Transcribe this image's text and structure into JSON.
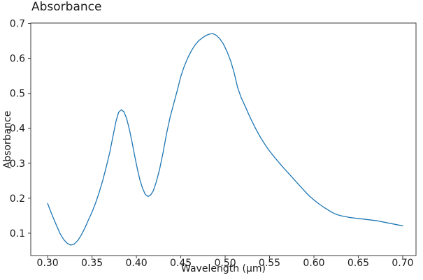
{
  "chart_data": {
    "type": "line",
    "title": "Absorbance",
    "xlabel": "Wavelength (μm)",
    "ylabel": "Absorbance",
    "xlim": [
      0.281,
      0.715
    ],
    "ylim": [
      0.036,
      0.701
    ],
    "grid": false,
    "legend": false,
    "line_color": "#1f77b4",
    "axis_color": "#3b3b3b",
    "text_color": "#1c1c1c",
    "background_color": "#ffffff",
    "x_ticks": {
      "values": [
        0.3,
        0.35,
        0.4,
        0.45,
        0.5,
        0.55,
        0.6,
        0.65,
        0.7
      ],
      "labels": [
        "0.30",
        "0.35",
        "0.40",
        "0.45",
        "0.50",
        "0.55",
        "0.60",
        "0.65",
        "0.70"
      ]
    },
    "y_ticks": {
      "values": [
        0.1,
        0.2,
        0.3,
        0.4,
        0.5,
        0.6,
        0.7
      ],
      "labels": [
        "0.1",
        "0.2",
        "0.3",
        "0.4",
        "0.5",
        "0.6",
        "0.7"
      ]
    },
    "series": [
      {
        "name": "absorbance",
        "x": [
          0.3,
          0.303,
          0.306,
          0.31,
          0.314,
          0.318,
          0.322,
          0.326,
          0.33,
          0.334,
          0.338,
          0.342,
          0.346,
          0.35,
          0.354,
          0.358,
          0.362,
          0.366,
          0.37,
          0.374,
          0.377,
          0.38,
          0.383,
          0.386,
          0.389,
          0.392,
          0.395,
          0.398,
          0.401,
          0.404,
          0.407,
          0.41,
          0.413,
          0.416,
          0.419,
          0.422,
          0.426,
          0.43,
          0.434,
          0.438,
          0.442,
          0.446,
          0.45,
          0.454,
          0.458,
          0.462,
          0.466,
          0.47,
          0.474,
          0.478,
          0.482,
          0.486,
          0.49,
          0.494,
          0.498,
          0.502,
          0.506,
          0.51,
          0.514,
          0.518,
          0.522,
          0.526,
          0.53,
          0.535,
          0.54,
          0.545,
          0.55,
          0.555,
          0.56,
          0.565,
          0.57,
          0.575,
          0.58,
          0.585,
          0.59,
          0.595,
          0.6,
          0.605,
          0.61,
          0.615,
          0.62,
          0.625,
          0.63,
          0.64,
          0.65,
          0.66,
          0.67,
          0.68,
          0.69,
          0.7
        ],
        "y": [
          0.185,
          0.165,
          0.146,
          0.122,
          0.099,
          0.082,
          0.071,
          0.066,
          0.069,
          0.079,
          0.095,
          0.115,
          0.138,
          0.16,
          0.186,
          0.216,
          0.25,
          0.289,
          0.331,
          0.382,
          0.42,
          0.446,
          0.453,
          0.447,
          0.428,
          0.398,
          0.362,
          0.322,
          0.285,
          0.252,
          0.228,
          0.211,
          0.205,
          0.209,
          0.221,
          0.243,
          0.281,
          0.33,
          0.385,
          0.432,
          0.47,
          0.508,
          0.548,
          0.578,
          0.602,
          0.622,
          0.638,
          0.65,
          0.658,
          0.665,
          0.669,
          0.671,
          0.666,
          0.656,
          0.641,
          0.62,
          0.594,
          0.56,
          0.517,
          0.488,
          0.466,
          0.443,
          0.421,
          0.396,
          0.373,
          0.353,
          0.335,
          0.319,
          0.304,
          0.289,
          0.275,
          0.261,
          0.247,
          0.233,
          0.219,
          0.206,
          0.195,
          0.185,
          0.176,
          0.168,
          0.16,
          0.154,
          0.15,
          0.145,
          0.142,
          0.139,
          0.136,
          0.131,
          0.126,
          0.121
        ]
      }
    ],
    "key_features": {
      "start": [
        0.3,
        0.185
      ],
      "first_minimum": [
        0.326,
        0.066
      ],
      "first_peak": [
        0.383,
        0.453
      ],
      "second_minimum": [
        0.413,
        0.205
      ],
      "main_peak": [
        0.486,
        0.671
      ],
      "end": [
        0.7,
        0.121
      ]
    }
  }
}
